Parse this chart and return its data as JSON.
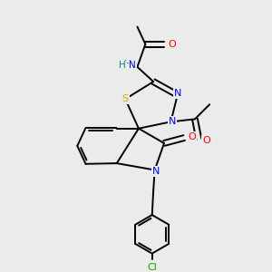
{
  "bg_color": "#ebebeb",
  "atom_colors": {
    "N": "#0000ff",
    "O": "#ff0000",
    "S": "#ccaa00",
    "Cl": "#00aa00",
    "H": "#008888",
    "C": "#000000"
  },
  "bond_color": "#000000",
  "fig_size": [
    3.0,
    3.0
  ],
  "dpi": 100,
  "xlim": [
    0,
    10
  ],
  "ylim": [
    0,
    10
  ]
}
